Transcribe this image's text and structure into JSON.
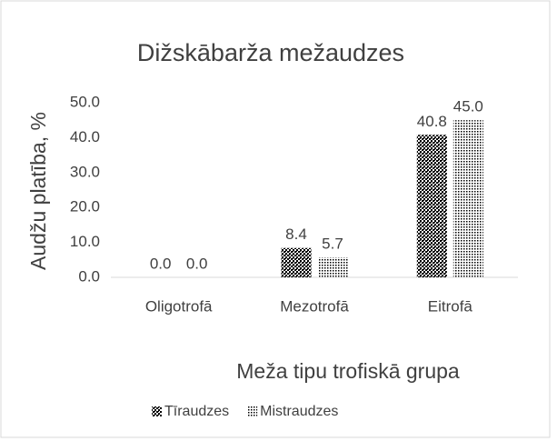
{
  "chart_data": {
    "type": "bar",
    "title": "Dižskābarža mežaudzes",
    "x_label": "Meža tipu trofiskā grupa",
    "y_label": "Audžu platība, %",
    "categories": [
      "Oligotrofā",
      "Mezotrofā",
      "Eitrofā"
    ],
    "series": [
      {
        "name": "Tīraudzes",
        "color": "#000000",
        "values": [
          0,
          8.4,
          40.8
        ],
        "value_labels": [
          "0.0",
          "8.4",
          "40.8"
        ]
      },
      {
        "name": "Mistraudzes",
        "color": "#000000",
        "values": [
          0,
          5.7,
          45
        ],
        "value_labels": [
          "0.0",
          "5.7",
          "45.0"
        ]
      }
    ],
    "ylim": [
      0,
      50
    ],
    "yticks": [
      {
        "value": 0,
        "label": "0.0"
      },
      {
        "value": 10,
        "label": "10.0"
      },
      {
        "value": 20,
        "label": "20.0"
      },
      {
        "value": 30,
        "label": "30.0"
      },
      {
        "value": 40,
        "label": "40.0"
      },
      {
        "value": 50,
        "label": "50.0"
      }
    ],
    "grid": false,
    "legend": "bottom"
  }
}
